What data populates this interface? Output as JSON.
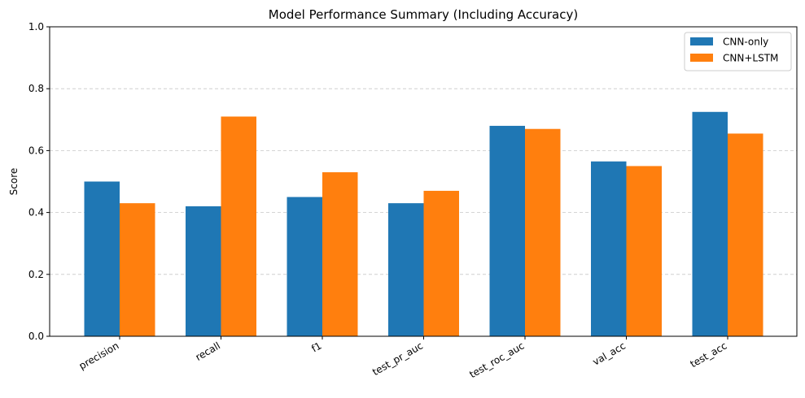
{
  "chart_data": {
    "type": "bar",
    "title": "Model Performance Summary (Including Accuracy)",
    "xlabel": "",
    "ylabel": "Score",
    "ylim": [
      0,
      1
    ],
    "yticks": [
      "0.0",
      "0.2",
      "0.4",
      "0.6",
      "0.8",
      "1.0"
    ],
    "grid": "y-dashed",
    "legend_position": "top-right",
    "categories": [
      "precision",
      "recall",
      "f1",
      "test_pr_auc",
      "test_roc_auc",
      "val_acc",
      "test_acc"
    ],
    "series": [
      {
        "name": "CNN-only",
        "color": "#1f77b4",
        "values": [
          0.5,
          0.42,
          0.45,
          0.43,
          0.68,
          0.565,
          0.725
        ]
      },
      {
        "name": "CNN+LSTM",
        "color": "#ff7f0e",
        "values": [
          0.43,
          0.71,
          0.53,
          0.47,
          0.67,
          0.55,
          0.655
        ]
      }
    ]
  }
}
